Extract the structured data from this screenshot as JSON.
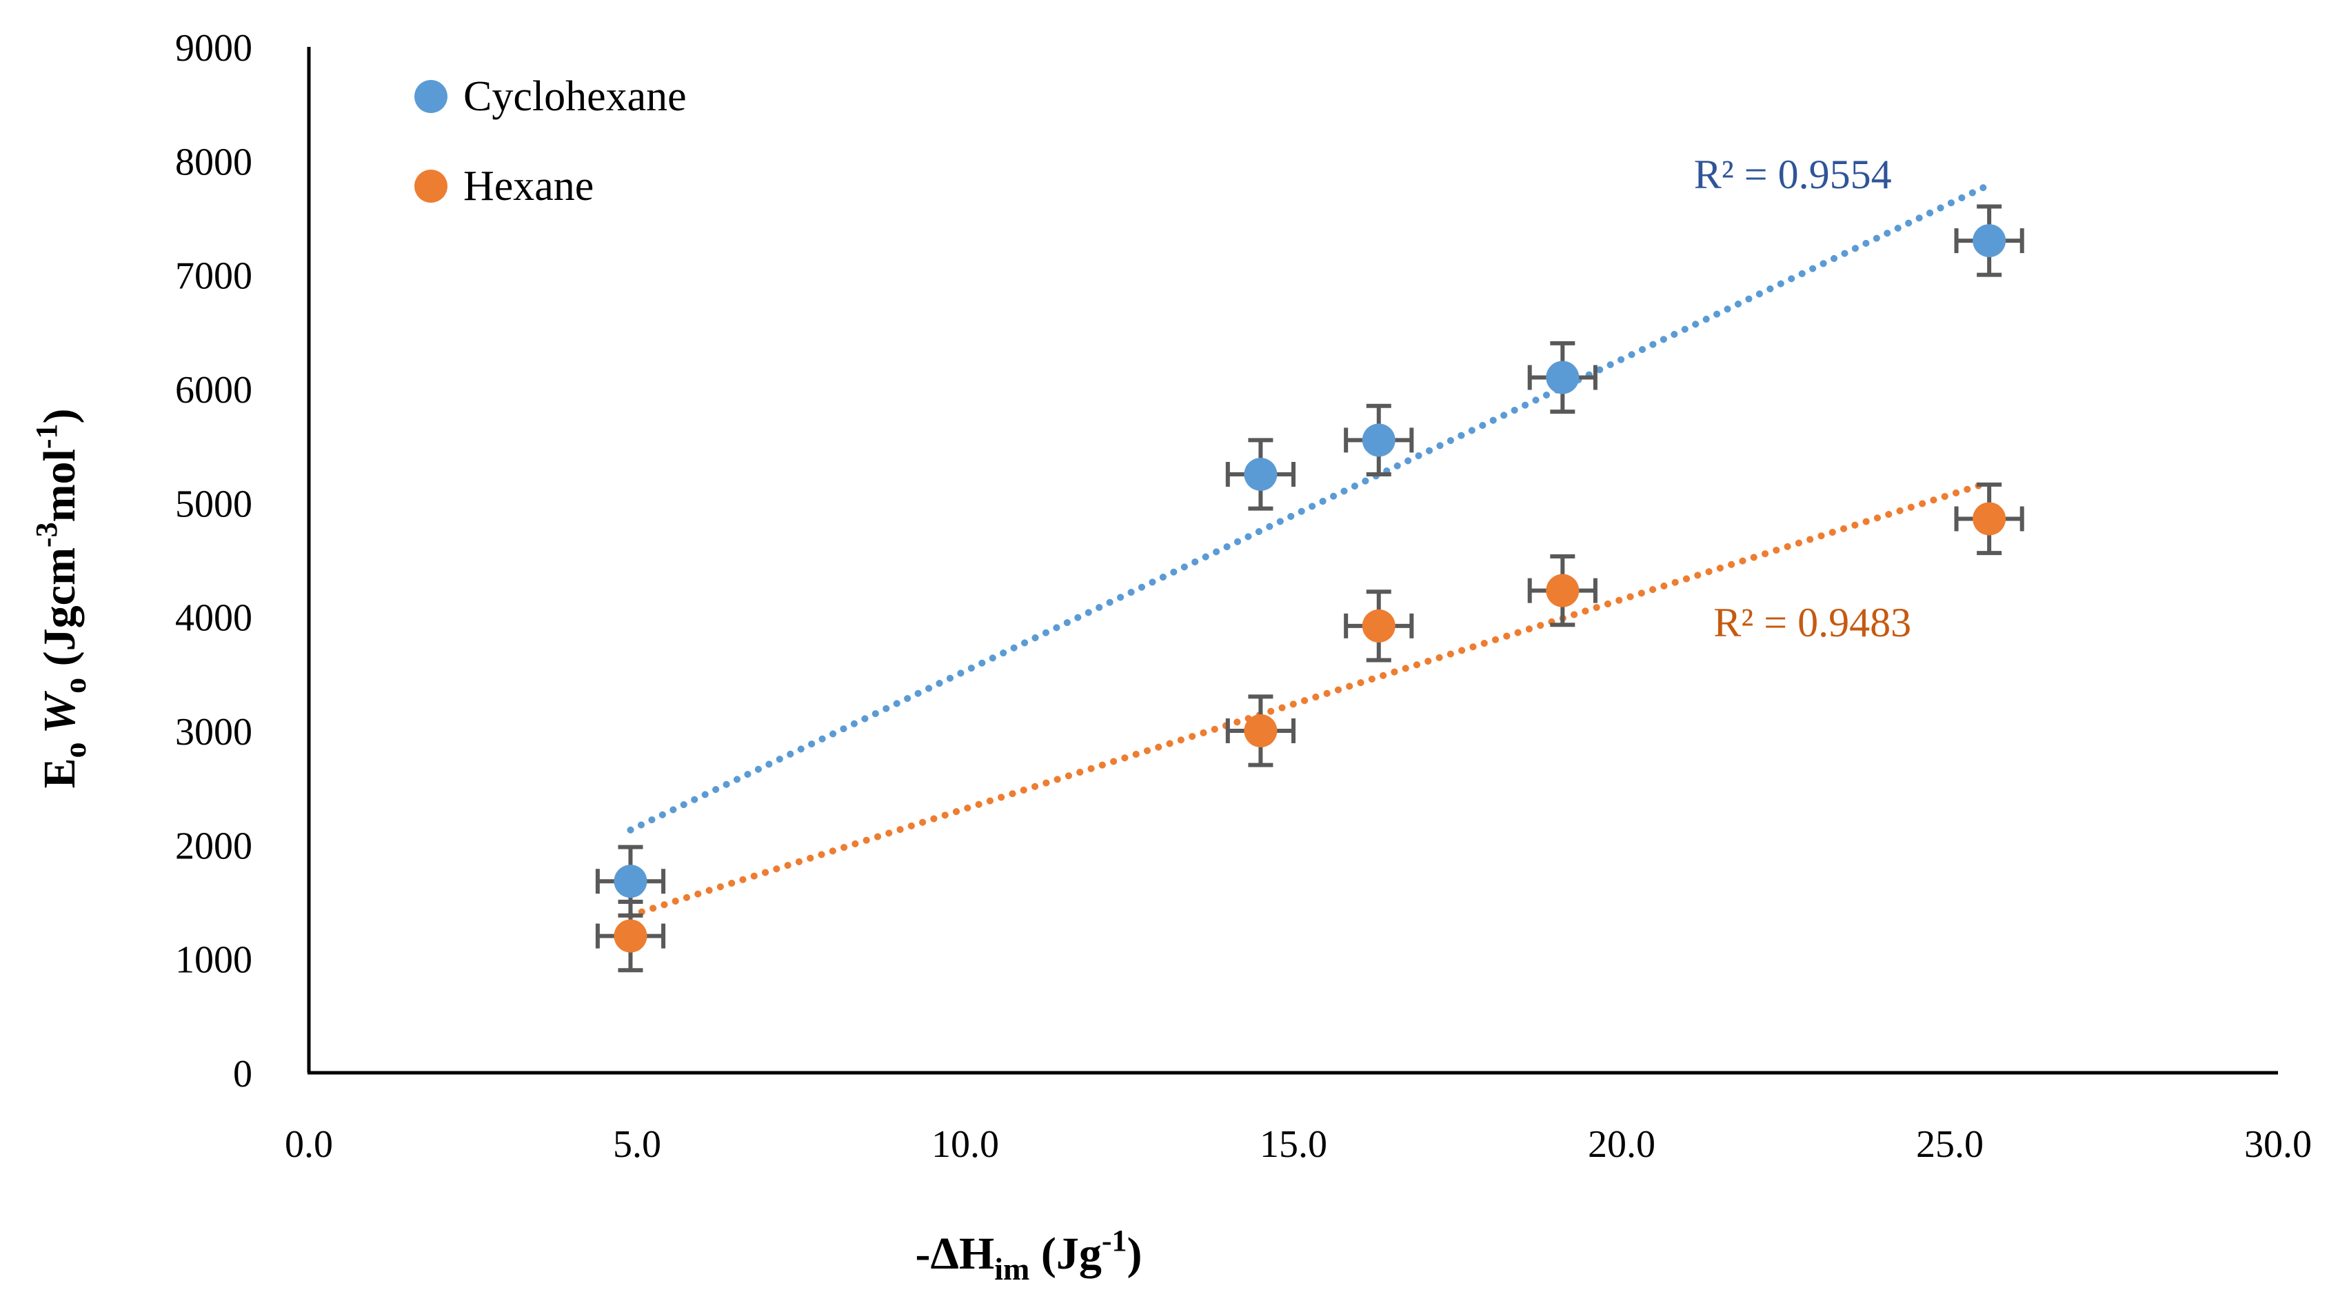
{
  "chart_data": {
    "type": "scatter",
    "title": "",
    "xlabel": {
      "prefix": "-ΔH",
      "sub": "im",
      "unit_open": " (Jg",
      "sup": "-1",
      "unit_close": ")"
    },
    "ylabel": {
      "e": "E",
      "e_sub": "o",
      "w": "W",
      "w_sub": "o",
      "unit_open": " (Jgcm",
      "sup1": "-3",
      "mid": "mol",
      "sup2": "-1",
      "unit_close": ")"
    },
    "xlim": [
      0,
      30
    ],
    "ylim": [
      0,
      9000
    ],
    "x_ticks": [
      0,
      5,
      10,
      15,
      20,
      25,
      30
    ],
    "x_tick_labels": [
      "0.0",
      "5.0",
      "10.0",
      "15.0",
      "20.0",
      "25.0",
      "30.0"
    ],
    "y_ticks": [
      0,
      1000,
      2000,
      3000,
      4000,
      5000,
      6000,
      7000,
      8000,
      9000
    ],
    "y_tick_labels": [
      "0",
      "1000",
      "2000",
      "3000",
      "4000",
      "5000",
      "6000",
      "7000",
      "8000",
      "9000"
    ],
    "grid": false,
    "legend_position": "top-left",
    "error_bar_color": "#595959",
    "series": [
      {
        "name": "Cyclohexane",
        "color": "#5B9BD5",
        "label_color": "#2F5597",
        "x": [
          4.9,
          14.5,
          16.3,
          19.1,
          25.6
        ],
        "y": [
          1680,
          5250,
          5550,
          6100,
          7300
        ],
        "x_err": 0.5,
        "y_err": 300,
        "trendline": {
          "x": [
            4.9,
            25.6
          ],
          "y": [
            2130,
            7790
          ]
        },
        "r2_label": "R² = 0.9554",
        "r2_anchor": {
          "x": 21.1,
          "y": 7760
        }
      },
      {
        "name": "Hexane",
        "color": "#ED7D31",
        "label_color": "#C55A11",
        "x": [
          4.9,
          14.5,
          16.3,
          19.1,
          25.6
        ],
        "y": [
          1200,
          3000,
          3920,
          4230,
          4860
        ],
        "x_err": 0.5,
        "y_err": 300,
        "trendline": {
          "x": [
            4.9,
            25.6
          ],
          "y": [
            1380,
            5180
          ]
        },
        "r2_label": "R² = 0.9483",
        "r2_anchor": {
          "x": 21.4,
          "y": 3830
        }
      }
    ]
  }
}
